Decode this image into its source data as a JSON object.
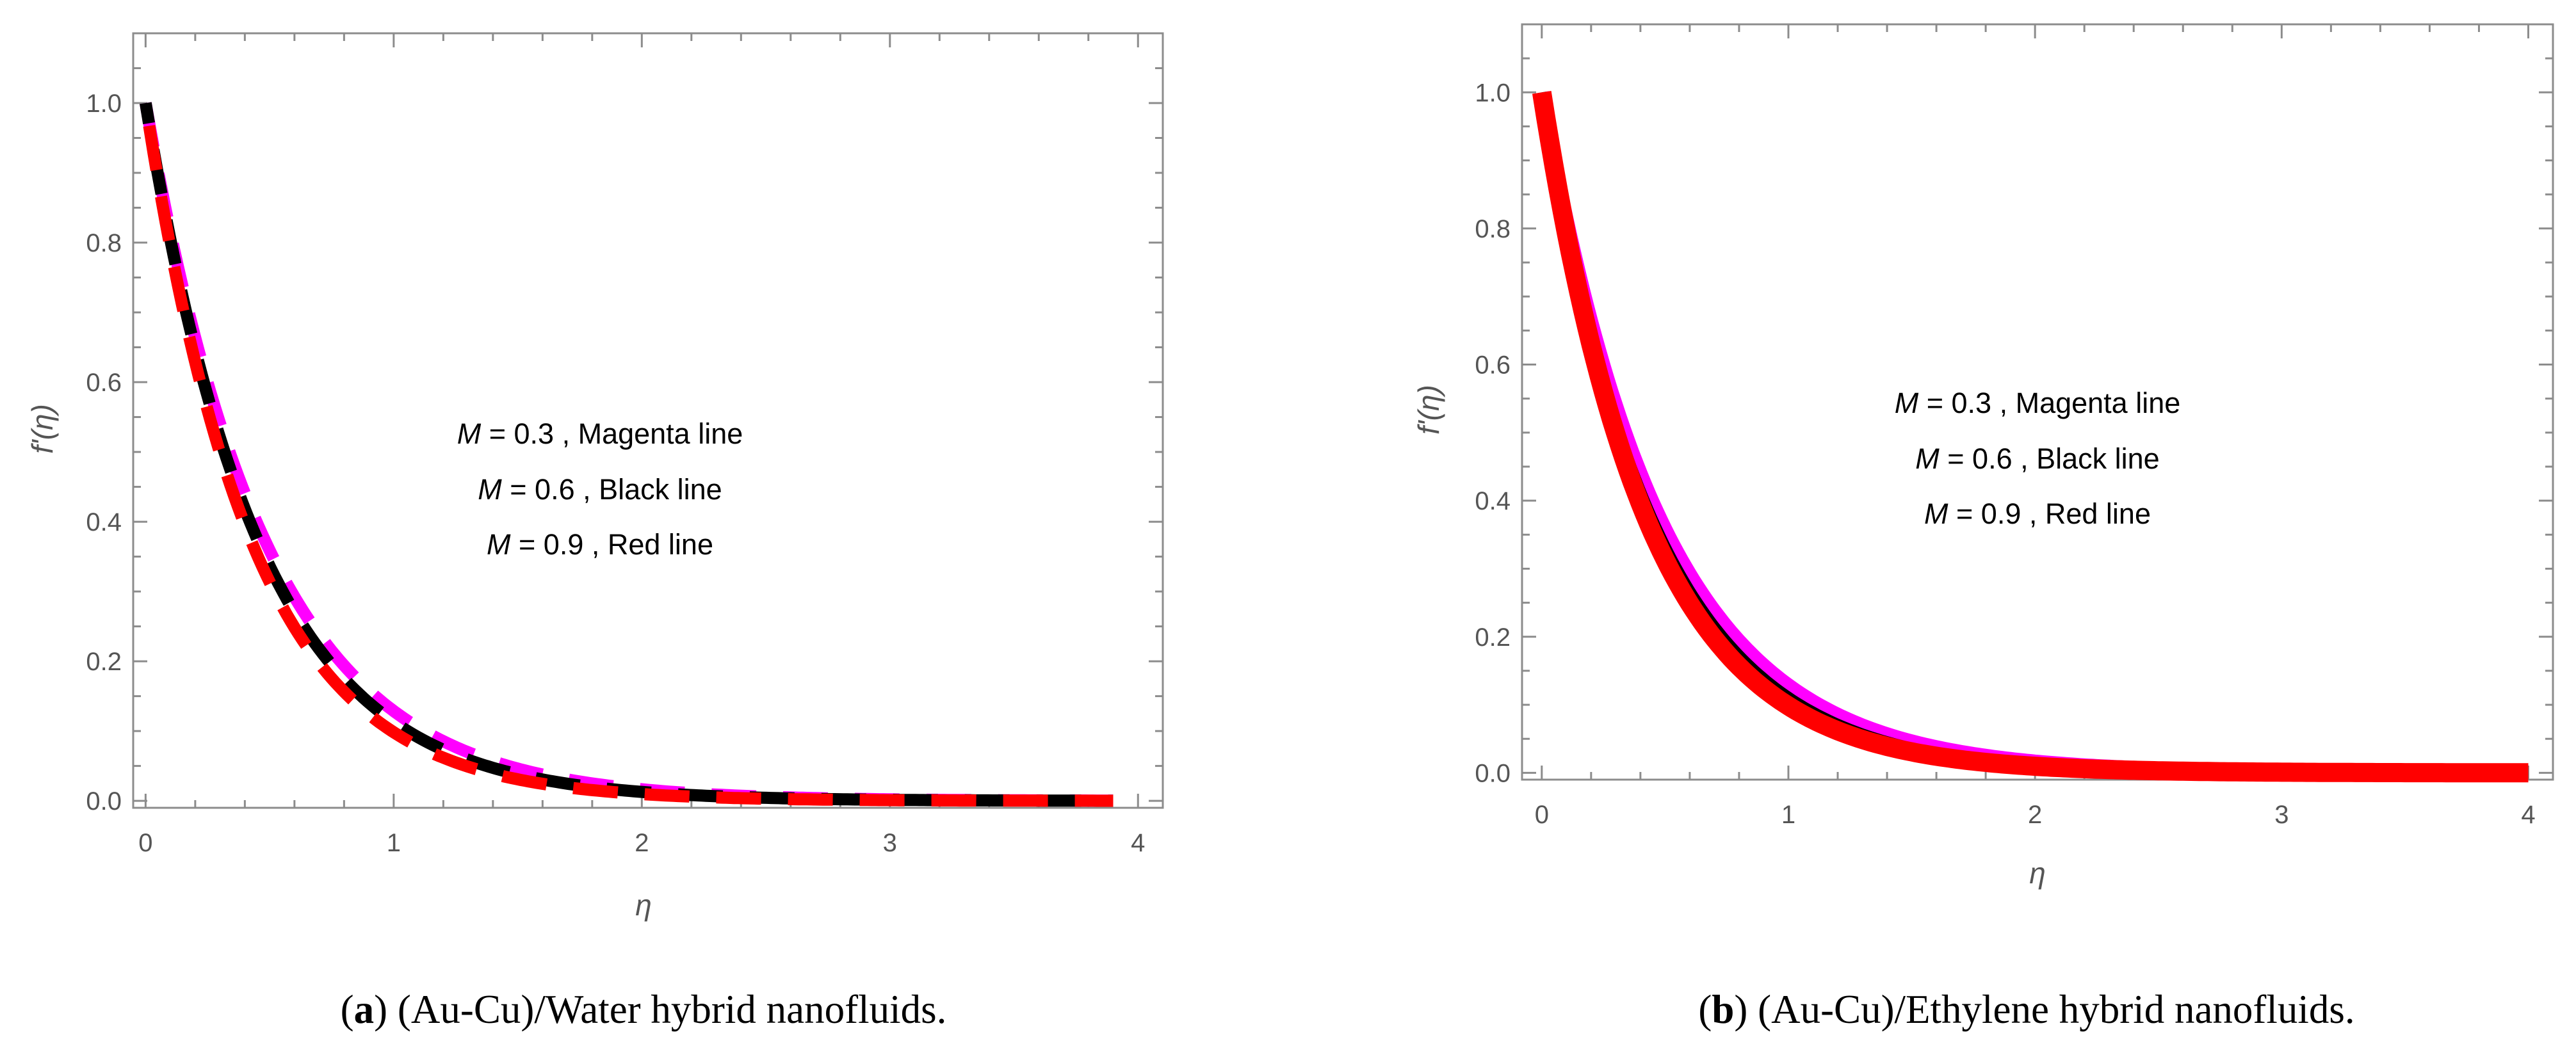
{
  "chart_data": [
    {
      "panel": "a",
      "type": "line",
      "caption": {
        "letter": "a",
        "open": "(",
        "close": ")",
        "text": " (Au-Cu)/Water hybrid nanofluids."
      },
      "xlabel": "η",
      "ylabel": "f'(η)",
      "xlim": [
        -0.05,
        4.1
      ],
      "ylim": [
        -0.01,
        1.1
      ],
      "xticks": [
        0,
        1,
        2,
        3,
        4
      ],
      "xtick_labels": [
        "0",
        "1",
        "2",
        "3",
        "4"
      ],
      "yticks": [
        0.0,
        0.2,
        0.4,
        0.6,
        0.8,
        1.0
      ],
      "ytick_labels": [
        "0.0",
        "0.2",
        "0.4",
        "0.6",
        "0.8",
        "1.0"
      ],
      "line_style": "dashed",
      "x_range": [
        0,
        3.9
      ],
      "annotations": [
        {
          "var": "M",
          "eq": " = 0.3 , Magenta  line"
        },
        {
          "var": "M",
          "eq": " = 0.6 , Black line"
        },
        {
          "var": "M",
          "eq": " = 0.9 , Red  line"
        }
      ],
      "series": [
        {
          "name": "M = 0.3",
          "color": "#FF00FF",
          "k": 2.05,
          "x": [
            0,
            0.5,
            1,
            1.5,
            2,
            3,
            3.9
          ],
          "y": [
            1.0,
            0.359,
            0.129,
            0.046,
            0.017,
            0.002,
            0.0003
          ]
        },
        {
          "name": "M = 0.6",
          "color": "#000000",
          "k": 2.18,
          "x": [
            0,
            0.5,
            1,
            1.5,
            2,
            3,
            3.9
          ],
          "y": [
            1.0,
            0.336,
            0.113,
            0.038,
            0.013,
            0.001,
            0.0002
          ]
        },
        {
          "name": "M = 0.9",
          "color": "#FF0000",
          "k": 2.32,
          "x": [
            0,
            0.5,
            1,
            1.5,
            2,
            3,
            3.9
          ],
          "y": [
            1.0,
            0.313,
            0.098,
            0.031,
            0.01,
            0.001,
            0.0001
          ]
        }
      ]
    },
    {
      "panel": "b",
      "type": "line",
      "caption": {
        "letter": "b",
        "open": "(",
        "close": ")",
        "text": " (Au-Cu)/Ethylene hybrid nanofluids."
      },
      "xlabel": "η",
      "ylabel": "f'(η)",
      "xlim": [
        -0.08,
        4.1
      ],
      "ylim": [
        -0.01,
        1.1
      ],
      "xticks": [
        0,
        1,
        2,
        3,
        4
      ],
      "xtick_labels": [
        "0",
        "1",
        "2",
        "3",
        "4"
      ],
      "yticks": [
        0.0,
        0.2,
        0.4,
        0.6,
        0.8,
        1.0
      ],
      "ytick_labels": [
        "0.0",
        "0.2",
        "0.4",
        "0.6",
        "0.8",
        "1.0"
      ],
      "line_style": "solid",
      "x_range": [
        0,
        4
      ],
      "annotations": [
        {
          "var": "M",
          "eq": " = 0.3 , Magenta  line"
        },
        {
          "var": "M",
          "eq": " = 0.6 , Black line"
        },
        {
          "var": "M",
          "eq": " = 0.9 , Red  line"
        }
      ],
      "series": [
        {
          "name": "M = 0.3",
          "color": "#FF00FF",
          "k": 2.05,
          "x": [
            0,
            0.5,
            1,
            1.5,
            2,
            3,
            4
          ],
          "y": [
            1.0,
            0.359,
            0.129,
            0.046,
            0.017,
            0.002,
            0.0003
          ]
        },
        {
          "name": "M = 0.6",
          "color": "#000000",
          "k": 2.18,
          "x": [
            0,
            0.5,
            1,
            1.5,
            2,
            3,
            4
          ],
          "y": [
            1.0,
            0.336,
            0.113,
            0.038,
            0.013,
            0.001,
            0.0002
          ]
        },
        {
          "name": "M = 0.9",
          "color": "#FF0000",
          "k": 2.32,
          "x": [
            0,
            0.5,
            1,
            1.5,
            2,
            3,
            4
          ],
          "y": [
            1.0,
            0.313,
            0.098,
            0.031,
            0.01,
            0.001,
            0.0001
          ]
        }
      ]
    }
  ]
}
